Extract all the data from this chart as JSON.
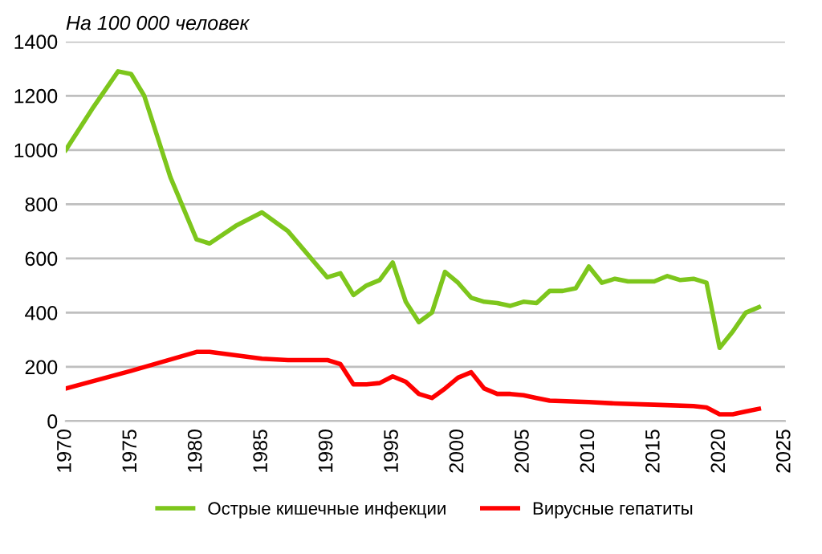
{
  "chart_data": {
    "type": "line",
    "title": "На 100 000 человек",
    "series": [
      {
        "name": "Острые кишечные инфекции",
        "color": "#7dc61c",
        "x": [
          1970,
          1972,
          1974,
          1975,
          1976,
          1978,
          1980,
          1981,
          1983,
          1985,
          1987,
          1990,
          1991,
          1992,
          1993,
          1994,
          1995,
          1996,
          1997,
          1998,
          1999,
          2000,
          2001,
          2002,
          2003,
          2004,
          2005,
          2006,
          2007,
          2008,
          2009,
          2010,
          2011,
          2012,
          2013,
          2014,
          2015,
          2016,
          2017,
          2018,
          2019,
          2020,
          2021,
          2022,
          2023
        ],
        "values": [
          1000,
          1150,
          1290,
          1280,
          1200,
          900,
          670,
          655,
          720,
          770,
          700,
          530,
          545,
          465,
          500,
          520,
          585,
          440,
          365,
          400,
          550,
          510,
          455,
          440,
          435,
          425,
          440,
          435,
          480,
          480,
          490,
          570,
          510,
          525,
          515,
          515,
          515,
          535,
          520,
          525,
          510,
          270,
          330,
          400,
          420
        ]
      },
      {
        "name": "Вирусные гепатиты",
        "color": "#ff0000",
        "x": [
          1970,
          1975,
          1980,
          1981,
          1985,
          1987,
          1990,
          1991,
          1992,
          1993,
          1994,
          1995,
          1996,
          1997,
          1998,
          1999,
          2000,
          2001,
          2002,
          2003,
          2004,
          2005,
          2006,
          2007,
          2010,
          2012,
          2015,
          2018,
          2019,
          2020,
          2021,
          2022,
          2023
        ],
        "values": [
          120,
          185,
          255,
          255,
          230,
          225,
          225,
          210,
          135,
          135,
          140,
          165,
          145,
          100,
          85,
          120,
          160,
          180,
          120,
          100,
          100,
          95,
          85,
          75,
          70,
          65,
          60,
          55,
          50,
          25,
          25,
          35,
          45
        ]
      }
    ],
    "xlim": [
      1970,
      2025
    ],
    "xticks": [
      1970,
      1975,
      1980,
      1985,
      1990,
      1995,
      2000,
      2005,
      2010,
      2015,
      2020,
      2025
    ],
    "ylim": [
      0,
      1400
    ],
    "yticks": [
      0,
      200,
      400,
      600,
      800,
      1000,
      1200,
      1400
    ],
    "grid": "y",
    "legend": "bottom",
    "marker": "none",
    "line_style": "solid"
  }
}
